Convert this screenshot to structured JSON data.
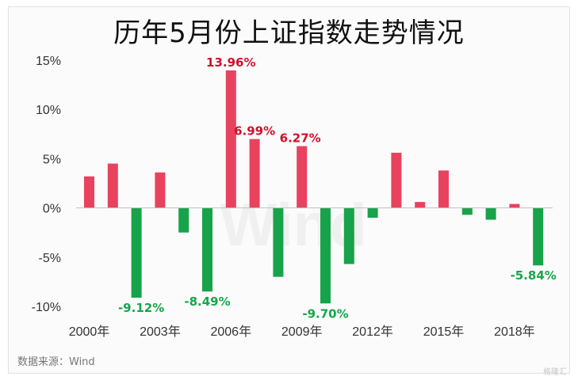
{
  "chart_data": {
    "type": "bar",
    "title": "历年5月份上证指数走势情况",
    "categories": [
      "2000",
      "2001",
      "2002",
      "2003",
      "2004",
      "2005",
      "2006",
      "2007",
      "2008",
      "2009",
      "2010",
      "2011",
      "2012",
      "2013",
      "2014",
      "2015",
      "2016",
      "2017",
      "2018",
      "2019"
    ],
    "x_tick_labels": [
      "2000年",
      "2003年",
      "2006年",
      "2009年",
      "2012年",
      "2015年",
      "2018年"
    ],
    "x_tick_years": [
      2000,
      2003,
      2006,
      2009,
      2012,
      2015,
      2018
    ],
    "values": [
      3.2,
      4.5,
      -9.12,
      3.6,
      -2.5,
      -8.49,
      13.96,
      6.99,
      -7.0,
      6.27,
      -9.7,
      -5.7,
      -1.0,
      5.6,
      0.6,
      3.8,
      -0.7,
      -1.2,
      0.4,
      -5.84
    ],
    "data_labels": [
      {
        "year": "2002",
        "text": "-9.12%"
      },
      {
        "year": "2005",
        "text": "-8.49%"
      },
      {
        "year": "2006",
        "text": "13.96%"
      },
      {
        "year": "2007",
        "text": "6.99%"
      },
      {
        "year": "2009",
        "text": "6.27%"
      },
      {
        "year": "2010",
        "text": "-9.70%"
      },
      {
        "year": "2019",
        "text": "-5.84%"
      }
    ],
    "y_ticks": [
      15,
      10,
      5,
      0,
      -5,
      -10
    ],
    "y_tick_labels": [
      "15%",
      "10%",
      "5%",
      "0%",
      "-5%",
      "-10%"
    ],
    "ylim": [
      -10,
      15
    ],
    "grid": false,
    "colors": {
      "positive": "#e8425f",
      "negative": "#17a34a",
      "positive_label": "#d0102c",
      "negative_label": "#16a64a"
    }
  },
  "source": "数据来源：Wind",
  "watermark": "Wind",
  "corner_watermark": "格隆汇"
}
